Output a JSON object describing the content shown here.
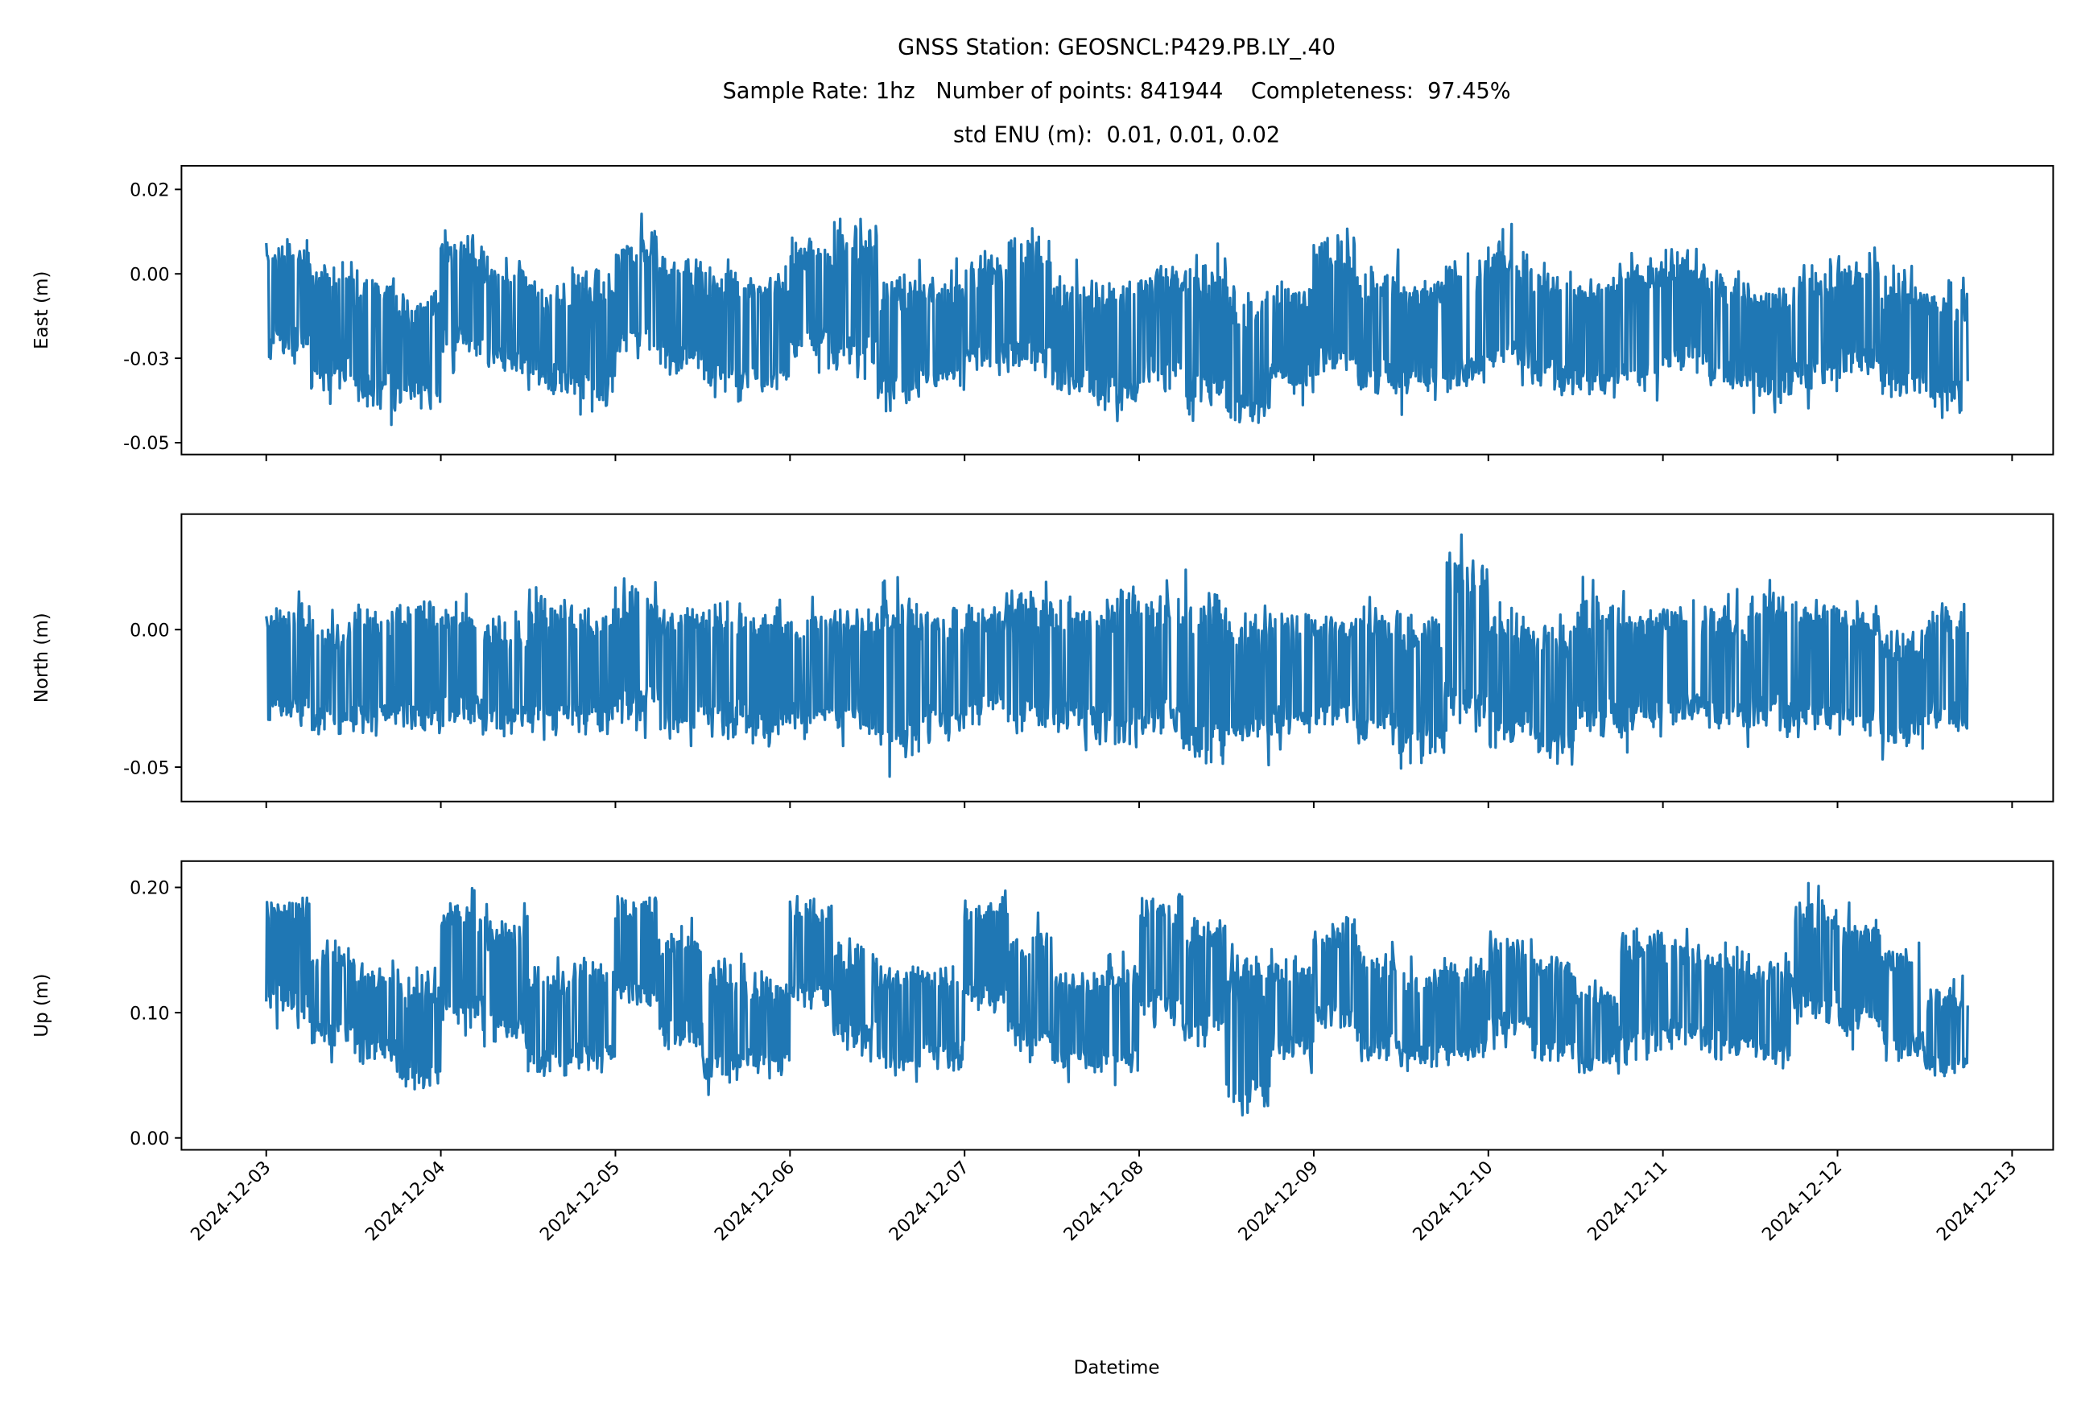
{
  "title_lines": [
    "GNSS Station: GEOSNCL:P429.PB.LY_.40",
    "Sample Rate: 1hz   Number of points: 841944    Completeness:  97.45%",
    "std ENU (m):  0.01, 0.01, 0.02"
  ],
  "colors": {
    "series": "#1f77b4",
    "axes": "#000000",
    "background": "#ffffff"
  },
  "chart_data": {
    "type": "line",
    "xlabel": "Datetime",
    "x_ticks": [
      "2024-12-03",
      "2024-12-04",
      "2024-12-05",
      "2024-12-06",
      "2024-12-07",
      "2024-12-08",
      "2024-12-09",
      "2024-12-10",
      "2024-12-11",
      "2024-12-12",
      "2024-12-13"
    ],
    "x_range": [
      "2024-12-02T12:00",
      "2024-12-13T00:00"
    ],
    "data_span": [
      "2024-12-03T00:00",
      "2024-12-12T18:00"
    ],
    "window_hours": 6,
    "grid": false,
    "legend": "none",
    "panels": [
      {
        "ylabel": "East (m)",
        "ylim": [
          -0.0535,
          0.032
        ],
        "y_ticks": [
          {
            "value": 0.025,
            "label": "0.02"
          },
          {
            "value": 0,
            "label": "0.00"
          },
          {
            "value": -0.025,
            "label": "-0.03"
          },
          {
            "value": -0.05,
            "label": "-0.05"
          }
        ],
        "envelope_high_low": [
          [
            0.015,
            -0.03
          ],
          [
            0.01,
            -0.04
          ],
          [
            0.005,
            -0.045
          ],
          [
            0.0,
            -0.045
          ],
          [
            0.017,
            -0.03
          ],
          [
            0.01,
            -0.035
          ],
          [
            0.003,
            -0.04
          ],
          [
            0.007,
            -0.045
          ],
          [
            0.018,
            -0.03
          ],
          [
            0.01,
            -0.035
          ],
          [
            0.006,
            -0.042
          ],
          [
            0.006,
            -0.04
          ],
          [
            0.015,
            -0.03
          ],
          [
            0.022,
            -0.035
          ],
          [
            0.005,
            -0.045
          ],
          [
            0.005,
            -0.04
          ],
          [
            0.01,
            -0.035
          ],
          [
            0.018,
            -0.035
          ],
          [
            0.005,
            -0.042
          ],
          [
            0.004,
            -0.045
          ],
          [
            0.008,
            -0.04
          ],
          [
            0.01,
            -0.045
          ],
          [
            0.0,
            -0.05
          ],
          [
            0.004,
            -0.04
          ],
          [
            0.017,
            -0.035
          ],
          [
            0.008,
            -0.04
          ],
          [
            0.004,
            -0.042
          ],
          [
            0.01,
            -0.04
          ],
          [
            0.015,
            -0.035
          ],
          [
            0.008,
            -0.04
          ],
          [
            0.005,
            -0.042
          ],
          [
            0.01,
            -0.04
          ],
          [
            0.012,
            -0.035
          ],
          [
            0.005,
            -0.04
          ],
          [
            0.002,
            -0.042
          ],
          [
            0.008,
            -0.04
          ],
          [
            0.01,
            -0.035
          ],
          [
            0.004,
            -0.042
          ],
          [
            0.0,
            -0.045
          ]
        ]
      },
      {
        "ylabel": "North (m)",
        "ylim": [
          -0.0625,
          0.042
        ],
        "y_ticks": [
          {
            "value": 0,
            "label": "0.00"
          },
          {
            "value": -0.05,
            "label": "-0.05"
          }
        ],
        "envelope_high_low": [
          [
            0.015,
            -0.04
          ],
          [
            0.01,
            -0.045
          ],
          [
            0.015,
            -0.045
          ],
          [
            0.02,
            -0.045
          ],
          [
            0.015,
            -0.04
          ],
          [
            0.01,
            -0.045
          ],
          [
            0.02,
            -0.045
          ],
          [
            0.015,
            -0.045
          ],
          [
            0.025,
            -0.04
          ],
          [
            0.015,
            -0.045
          ],
          [
            0.018,
            -0.045
          ],
          [
            0.015,
            -0.048
          ],
          [
            0.012,
            -0.04
          ],
          [
            0.015,
            -0.045
          ],
          [
            0.02,
            -0.055
          ],
          [
            0.015,
            -0.045
          ],
          [
            0.015,
            -0.04
          ],
          [
            0.02,
            -0.045
          ],
          [
            0.018,
            -0.045
          ],
          [
            0.02,
            -0.05
          ],
          [
            0.02,
            -0.045
          ],
          [
            0.022,
            -0.058
          ],
          [
            0.015,
            -0.05
          ],
          [
            0.015,
            -0.045
          ],
          [
            0.012,
            -0.04
          ],
          [
            0.015,
            -0.05
          ],
          [
            0.012,
            -0.055
          ],
          [
            0.037,
            -0.045
          ],
          [
            0.015,
            -0.05
          ],
          [
            0.01,
            -0.055
          ],
          [
            0.02,
            -0.045
          ],
          [
            0.015,
            -0.045
          ],
          [
            0.015,
            -0.04
          ],
          [
            0.015,
            -0.045
          ],
          [
            0.025,
            -0.045
          ],
          [
            0.02,
            -0.045
          ],
          [
            0.015,
            -0.045
          ],
          [
            0.005,
            -0.05
          ],
          [
            0.015,
            -0.045
          ]
        ]
      },
      {
        "ylabel": "Up (m)",
        "ylim": [
          -0.0095,
          0.221
        ],
        "y_ticks": [
          {
            "value": 0.2,
            "label": "0.20"
          },
          {
            "value": 0.1,
            "label": "0.10"
          },
          {
            "value": 0,
            "label": "0.00"
          }
        ],
        "envelope_high_low": [
          [
            0.21,
            0.085
          ],
          [
            0.17,
            0.06
          ],
          [
            0.15,
            0.05
          ],
          [
            0.14,
            0.025
          ],
          [
            0.205,
            0.075
          ],
          [
            0.19,
            0.06
          ],
          [
            0.15,
            0.035
          ],
          [
            0.155,
            0.04
          ],
          [
            0.21,
            0.09
          ],
          [
            0.18,
            0.06
          ],
          [
            0.155,
            0.03
          ],
          [
            0.14,
            0.04
          ],
          [
            0.205,
            0.09
          ],
          [
            0.17,
            0.06
          ],
          [
            0.15,
            0.04
          ],
          [
            0.15,
            0.045
          ],
          [
            0.205,
            0.09
          ],
          [
            0.18,
            0.06
          ],
          [
            0.145,
            0.04
          ],
          [
            0.15,
            0.04
          ],
          [
            0.21,
            0.08
          ],
          [
            0.19,
            0.06
          ],
          [
            0.16,
            0.0
          ],
          [
            0.155,
            0.05
          ],
          [
            0.185,
            0.075
          ],
          [
            0.16,
            0.05
          ],
          [
            0.145,
            0.045
          ],
          [
            0.16,
            0.045
          ],
          [
            0.175,
            0.07
          ],
          [
            0.16,
            0.05
          ],
          [
            0.13,
            0.04
          ],
          [
            0.18,
            0.05
          ],
          [
            0.17,
            0.06
          ],
          [
            0.165,
            0.05
          ],
          [
            0.155,
            0.045
          ],
          [
            0.205,
            0.08
          ],
          [
            0.19,
            0.07
          ],
          [
            0.165,
            0.05
          ],
          [
            0.13,
            0.035
          ]
        ]
      }
    ]
  }
}
